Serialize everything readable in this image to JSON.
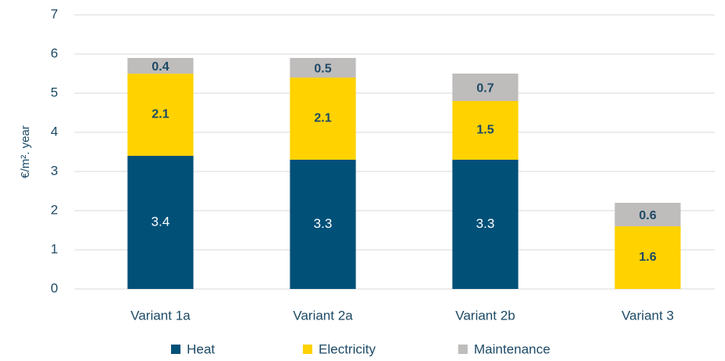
{
  "chart_data": {
    "type": "bar",
    "stacked": true,
    "y_label": "€/m². year",
    "categories": [
      "Variant 1a",
      "Variant 2a",
      "Variant 2b",
      "Variant 3"
    ],
    "series": [
      {
        "name": "Heat",
        "color": "#005078",
        "values": [
          3.4,
          3.3,
          3.3,
          null
        ]
      },
      {
        "name": "Electricity",
        "color": "#ffd200",
        "values": [
          2.1,
          2.1,
          1.5,
          1.6
        ]
      },
      {
        "name": "Maintenance",
        "color": "#bfbcbc",
        "values": [
          0.4,
          0.5,
          0.7,
          0.6
        ]
      }
    ],
    "ylim": [
      0,
      7
    ],
    "yticks": [
      0,
      1,
      2,
      3,
      4,
      5,
      6,
      7
    ],
    "grid": true,
    "legend": "bottom"
  }
}
